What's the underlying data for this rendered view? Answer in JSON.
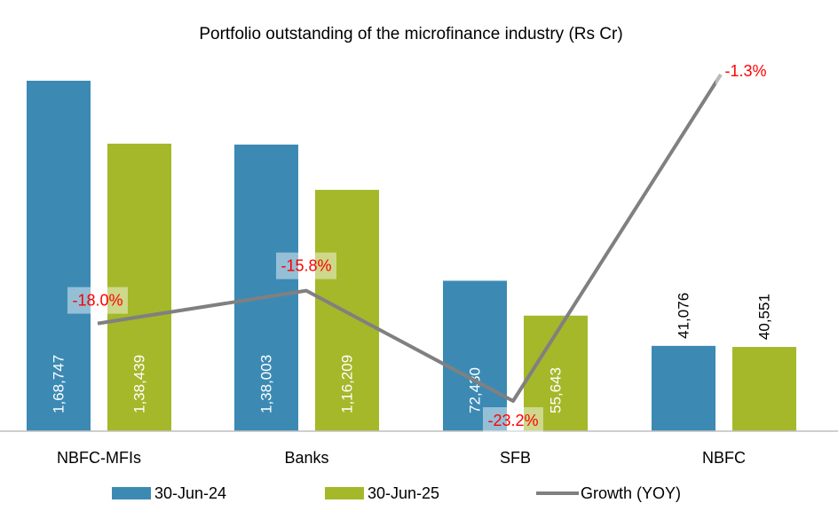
{
  "chart_data": {
    "type": "bar",
    "title": "Portfolio outstanding of the microfinance industry (Rs Cr)",
    "categories": [
      "NBFC-MFIs",
      "Banks",
      "SFB",
      "NBFC"
    ],
    "series": [
      {
        "name": "30-Jun-24",
        "color": "#3c8ab4",
        "values": [
          168747,
          138003,
          72430,
          41076
        ],
        "labels": [
          "1,68,747",
          "1,38,003",
          "72,430",
          "41,076"
        ]
      },
      {
        "name": "30-Jun-25",
        "color": "#a4b82a",
        "values": [
          138439,
          116209,
          55643,
          40551
        ],
        "labels": [
          "1,38,439",
          "1,16,209",
          "55,643",
          "40,551"
        ]
      }
    ],
    "line_series": {
      "name": "Growth (YOY)",
      "color": "#808080",
      "values": [
        -18.0,
        -15.8,
        -23.2,
        -1.3
      ],
      "labels": [
        "-18.0%",
        "-15.8%",
        "-23.2%",
        "-1.3%"
      ]
    },
    "legend_position": "bottom",
    "grid": false
  }
}
